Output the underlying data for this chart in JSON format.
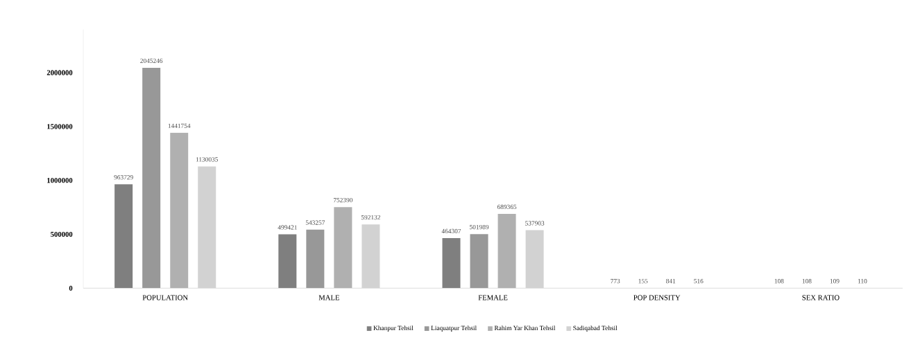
{
  "chart_data": {
    "type": "bar",
    "categories": [
      "POPULATION",
      "MALE",
      "FEMALE",
      "POP DENSITY",
      "SEX RATIO"
    ],
    "series": [
      {
        "name": "Khanpur Tehsil",
        "color": "#7f7f7f",
        "values": [
          963729,
          499421,
          464307,
          773,
          108
        ]
      },
      {
        "name": "Liaquatpur Tehsil",
        "color": "#989898",
        "values": [
          2045246,
          543257,
          501989,
          155,
          108
        ]
      },
      {
        "name": "Rahim Yar Khan Tehsil",
        "color": "#b0b0b0",
        "values": [
          1441754,
          752390,
          689365,
          841,
          109
        ]
      },
      {
        "name": "Sadiqabad Tehsil",
        "color": "#d2d2d2",
        "values": [
          1130035,
          592132,
          537903,
          516,
          110
        ]
      }
    ],
    "ylim": [
      0,
      2400000
    ],
    "yticks": [
      0,
      500000,
      1000000,
      1500000,
      2000000
    ],
    "data_labels": true,
    "grid": false,
    "legend": "bottom"
  }
}
